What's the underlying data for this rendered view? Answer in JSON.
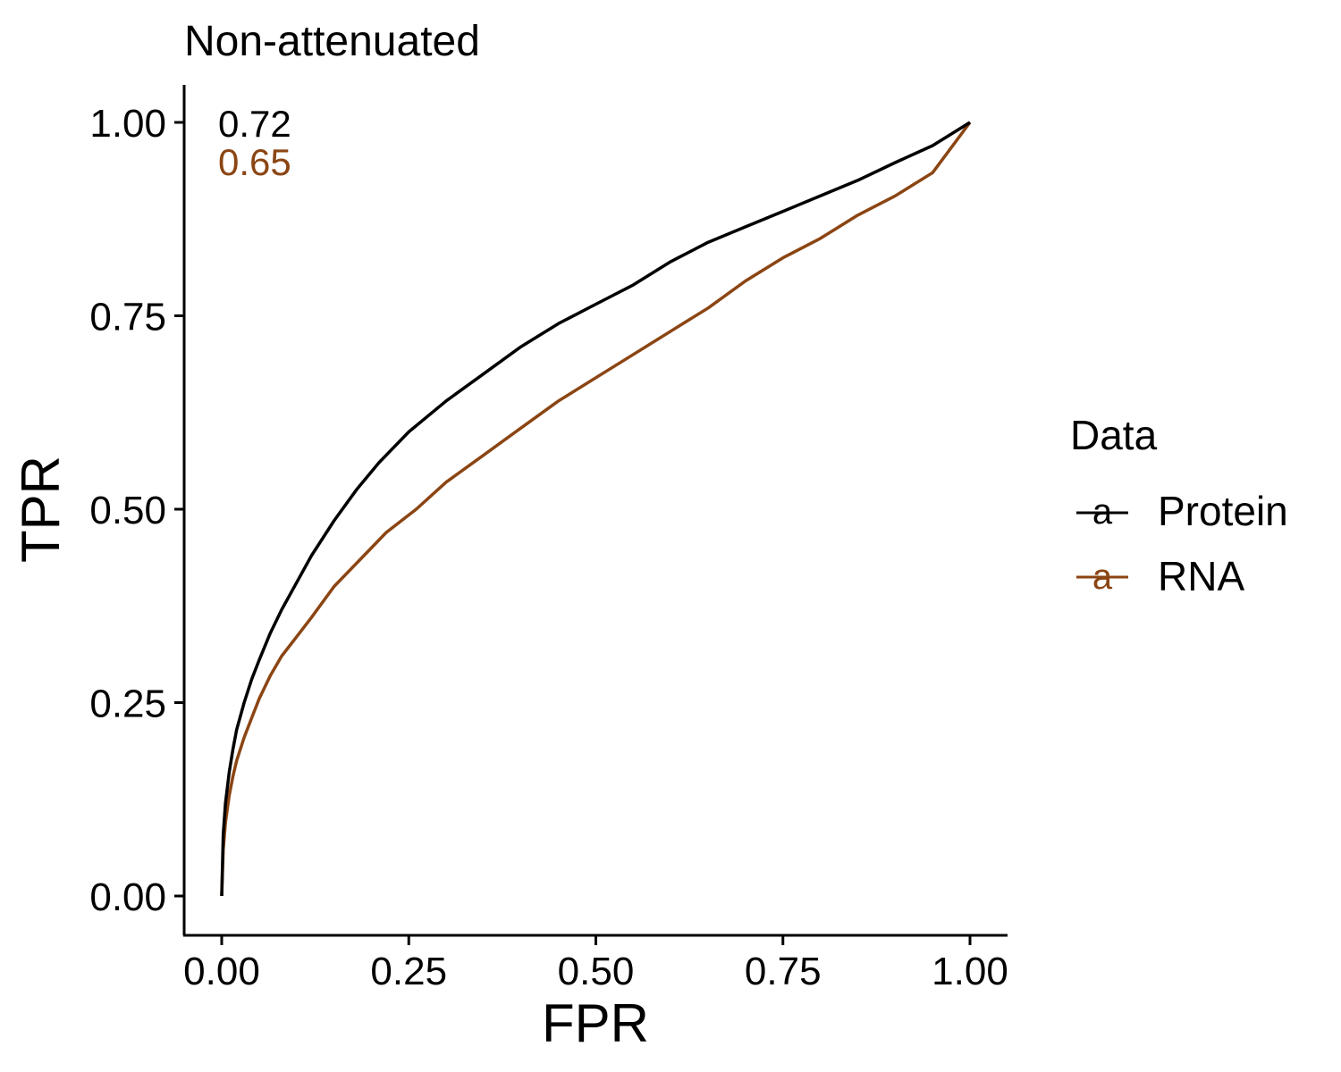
{
  "chart_data": {
    "type": "line",
    "title": "Non-attenuated",
    "xlabel": "FPR",
    "ylabel": "TPR",
    "xlim": [
      -0.05,
      1.05
    ],
    "ylim": [
      -0.05,
      1.05
    ],
    "xticks": [
      {
        "value": 0.0,
        "label": "0.00"
      },
      {
        "value": 0.25,
        "label": "0.25"
      },
      {
        "value": 0.5,
        "label": "0.50"
      },
      {
        "value": 0.75,
        "label": "0.75"
      },
      {
        "value": 1.0,
        "label": "1.00"
      }
    ],
    "yticks": [
      {
        "value": 0.0,
        "label": "0.00"
      },
      {
        "value": 0.25,
        "label": "0.25"
      },
      {
        "value": 0.5,
        "label": "0.50"
      },
      {
        "value": 0.75,
        "label": "0.75"
      },
      {
        "value": 1.0,
        "label": "1.00"
      }
    ],
    "grid": false,
    "legend": {
      "title": "Data",
      "position": "right",
      "key_glyph": "a",
      "entries": [
        {
          "label": "Protein",
          "color": "#000000"
        },
        {
          "label": "RNA",
          "color": "#8B4513"
        }
      ]
    },
    "annotations": [
      {
        "text": "0.72",
        "color": "#000000",
        "series": "Protein"
      },
      {
        "text": "0.65",
        "color": "#8B4513",
        "series": "RNA"
      }
    ],
    "series": [
      {
        "name": "Protein",
        "color": "#000000",
        "x": [
          0.0,
          0.002,
          0.005,
          0.01,
          0.015,
          0.02,
          0.03,
          0.04,
          0.05,
          0.065,
          0.08,
          0.1,
          0.12,
          0.15,
          0.18,
          0.21,
          0.25,
          0.3,
          0.35,
          0.4,
          0.45,
          0.5,
          0.55,
          0.6,
          0.65,
          0.7,
          0.75,
          0.8,
          0.85,
          0.9,
          0.95,
          1.0
        ],
        "y": [
          0.0,
          0.08,
          0.12,
          0.16,
          0.19,
          0.215,
          0.25,
          0.28,
          0.305,
          0.34,
          0.37,
          0.405,
          0.44,
          0.485,
          0.525,
          0.56,
          0.6,
          0.64,
          0.675,
          0.71,
          0.74,
          0.765,
          0.79,
          0.82,
          0.845,
          0.865,
          0.885,
          0.905,
          0.925,
          0.948,
          0.97,
          1.0
        ]
      },
      {
        "name": "RNA",
        "color": "#8B4513",
        "x": [
          0.0,
          0.002,
          0.005,
          0.01,
          0.015,
          0.02,
          0.03,
          0.04,
          0.05,
          0.065,
          0.08,
          0.1,
          0.12,
          0.15,
          0.18,
          0.22,
          0.26,
          0.3,
          0.35,
          0.4,
          0.45,
          0.5,
          0.55,
          0.6,
          0.65,
          0.7,
          0.75,
          0.8,
          0.85,
          0.9,
          0.95,
          1.0
        ],
        "y": [
          0.0,
          0.06,
          0.095,
          0.13,
          0.155,
          0.175,
          0.205,
          0.23,
          0.255,
          0.285,
          0.31,
          0.335,
          0.36,
          0.4,
          0.43,
          0.47,
          0.5,
          0.535,
          0.57,
          0.605,
          0.64,
          0.67,
          0.7,
          0.73,
          0.76,
          0.795,
          0.825,
          0.85,
          0.88,
          0.905,
          0.935,
          1.0
        ]
      }
    ]
  }
}
